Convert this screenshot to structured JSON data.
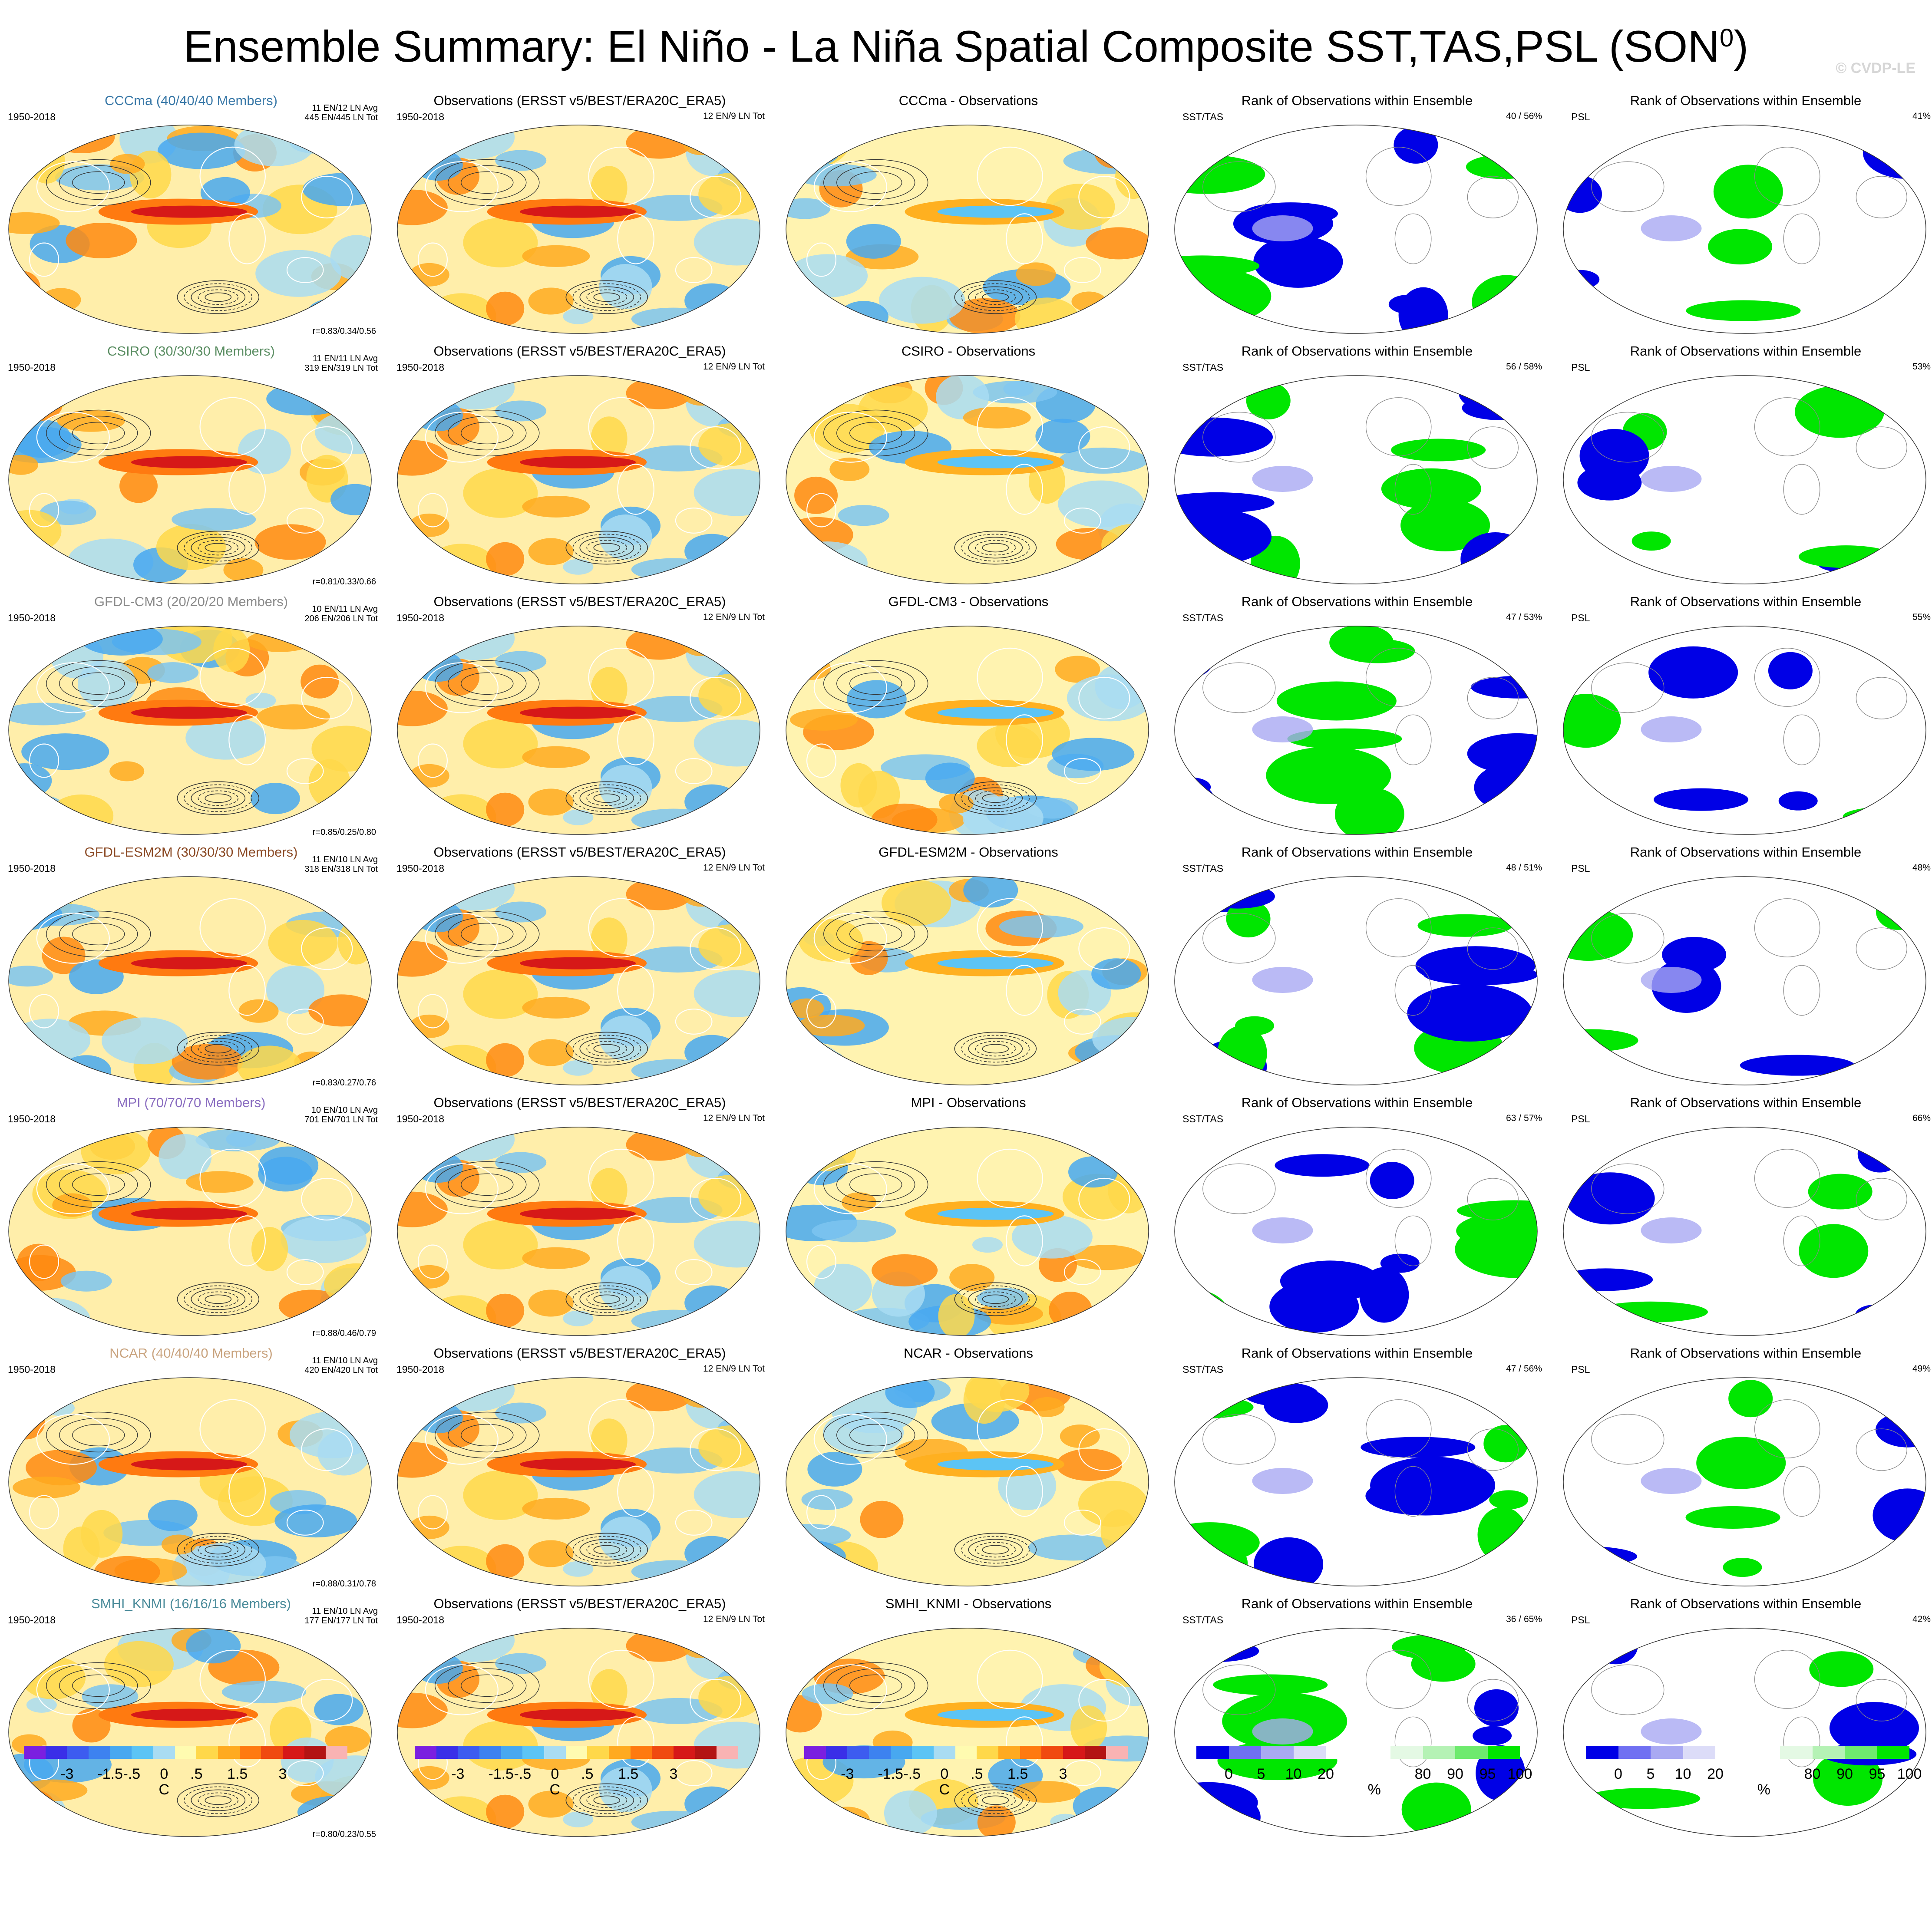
{
  "title": "Ensemble Summary: El Niño - La Niña Spatial Composite SST,TAS,PSL (SON",
  "title_superscript": "0",
  "title_close": ")",
  "copyright": "© CVDP-LE",
  "colors": {
    "model_titles": [
      "#3a79a8",
      "#5b8e63",
      "#8b8b8b",
      "#8b4a25",
      "#8a6dc0",
      "#c9a37e",
      "#4a8b9a"
    ],
    "rank_low": "#0000e6",
    "rank_high": "#00e600"
  },
  "rows": [
    {
      "model": "CCCma",
      "model_title": "CCCma (40/40/40 Members)",
      "stats": [
        "11 EN/12 LN Avg",
        "445 EN/445 LN Tot"
      ],
      "r": "r=0.83/0.34/0.56",
      "diff_title": "CCCma - Observations",
      "sst_rank": "40 /  56%",
      "psl_rank": "41%"
    },
    {
      "model": "CSIRO",
      "model_title": "CSIRO (30/30/30 Members)",
      "stats": [
        "11 EN/11 LN Avg",
        "319 EN/319 LN Tot"
      ],
      "r": "r=0.81/0.33/0.66",
      "diff_title": "CSIRO - Observations",
      "sst_rank": "56 /  58%",
      "psl_rank": "53%"
    },
    {
      "model": "GFDL-CM3",
      "model_title": "GFDL-CM3 (20/20/20 Members)",
      "stats": [
        "10 EN/11 LN Avg",
        "206 EN/206 LN Tot"
      ],
      "r": "r=0.85/0.25/0.80",
      "diff_title": "GFDL-CM3 - Observations",
      "sst_rank": "47 /  53%",
      "psl_rank": "55%"
    },
    {
      "model": "GFDL-ESM2M",
      "model_title": "GFDL-ESM2M (30/30/30 Members)",
      "stats": [
        "11 EN/10 LN Avg",
        "318 EN/318 LN Tot"
      ],
      "r": "r=0.83/0.27/0.76",
      "diff_title": "GFDL-ESM2M - Observations",
      "sst_rank": "48 /  51%",
      "psl_rank": "48%"
    },
    {
      "model": "MPI",
      "model_title": "MPI (70/70/70 Members)",
      "stats": [
        "10 EN/10 LN Avg",
        "701 EN/701 LN Tot"
      ],
      "r": "r=0.88/0.46/0.79",
      "diff_title": "MPI - Observations",
      "sst_rank": "63 /  57%",
      "psl_rank": "66%"
    },
    {
      "model": "NCAR",
      "model_title": "NCAR (40/40/40 Members)",
      "stats": [
        "11 EN/10 LN Avg",
        "420 EN/420 LN Tot"
      ],
      "r": "r=0.88/0.31/0.78",
      "diff_title": "NCAR - Observations",
      "sst_rank": "47 /  56%",
      "psl_rank": "49%"
    },
    {
      "model": "SMHI_KNMI",
      "model_title": "SMHI_KNMI (16/16/16 Members)",
      "stats": [
        "11 EN/10 LN Avg",
        "177 EN/177 LN Tot"
      ],
      "r": "r=0.80/0.23/0.55",
      "diff_title": "SMHI_KNMI - Observations",
      "sst_rank": "36 /  65%",
      "psl_rank": "42%"
    }
  ],
  "common": {
    "period": "1950-2018",
    "obs_title": "Observations (ERSST v5/BEST/ERA20C_ERA5)",
    "obs_stats": "12 EN/9 LN Tot",
    "rank_title": "Rank of Observations within Ensemble",
    "sst_label": "SST/TAS",
    "psl_label": "PSL"
  },
  "colorbar_temp": {
    "unit": "C",
    "ticks": [
      "-3",
      "-1.5",
      "-.5",
      "0",
      ".5",
      "1.5",
      "3"
    ],
    "colors": [
      "#7b1fe0",
      "#3a2fe8",
      "#3d5cf0",
      "#3d82f0",
      "#48a8f0",
      "#5cc4f5",
      "#a9dcf2",
      "#fffbb0",
      "#ffd84a",
      "#ffaa20",
      "#ff7a10",
      "#f04a10",
      "#d61818",
      "#b31414",
      "#f9b3b3"
    ]
  },
  "colorbar_rank": {
    "unit": "%",
    "ticks": [
      "0",
      "5",
      "10",
      "20",
      "80",
      "90",
      "95",
      "100"
    ],
    "colors": [
      "#0000e6",
      "#7070f2",
      "#a9a9f2",
      "#dcdcf8",
      "#ffffff",
      "#ffffff",
      "#e4f9e4",
      "#b5f2b5",
      "#6eea6e",
      "#00e600"
    ]
  }
}
